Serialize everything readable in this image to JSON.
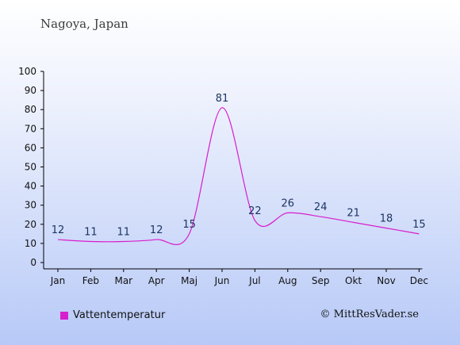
{
  "header": {
    "location": "Nagoya, Japan"
  },
  "footer": {
    "copyright": "© MittResVader.se"
  },
  "colors": {
    "series": "#d81dcd",
    "data_label": "#1c3461"
  },
  "chart_data": {
    "type": "line",
    "categories": [
      "Jan",
      "Feb",
      "Mar",
      "Apr",
      "Maj",
      "Jun",
      "Jul",
      "Aug",
      "Sep",
      "Okt",
      "Nov",
      "Dec"
    ],
    "series": [
      {
        "name": "Vattentemperatur",
        "values": [
          12,
          11,
          11,
          12,
          15,
          81,
          22,
          26,
          24,
          21,
          18,
          15
        ]
      }
    ],
    "ylim": [
      0,
      100
    ],
    "yticks": [
      0,
      10,
      20,
      30,
      40,
      50,
      60,
      70,
      80,
      90,
      100
    ],
    "grid": false,
    "legend": "bottom-left"
  }
}
